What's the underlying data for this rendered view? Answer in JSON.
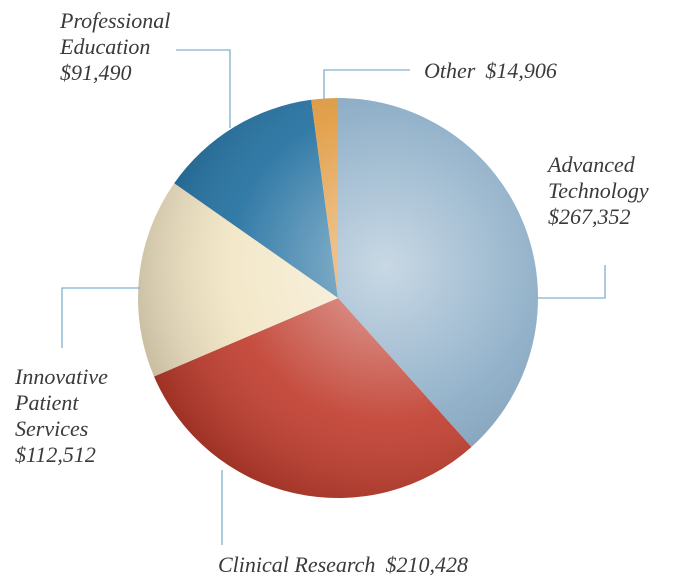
{
  "chart_data": {
    "type": "pie",
    "categories": [
      "Advanced Technology",
      "Clinical Research",
      "Innovative Patient Services",
      "Professional Education",
      "Other"
    ],
    "values": [
      267352,
      210428,
      112512,
      91490,
      14906
    ],
    "value_labels": [
      "$267,352",
      "$210,428",
      "$112,512",
      "$91,490",
      "$14,906"
    ],
    "colors": [
      "#86a9c4",
      "#bf3a2b",
      "#f2e5c3",
      "#1d6d9e",
      "#e0973a"
    ]
  }
}
